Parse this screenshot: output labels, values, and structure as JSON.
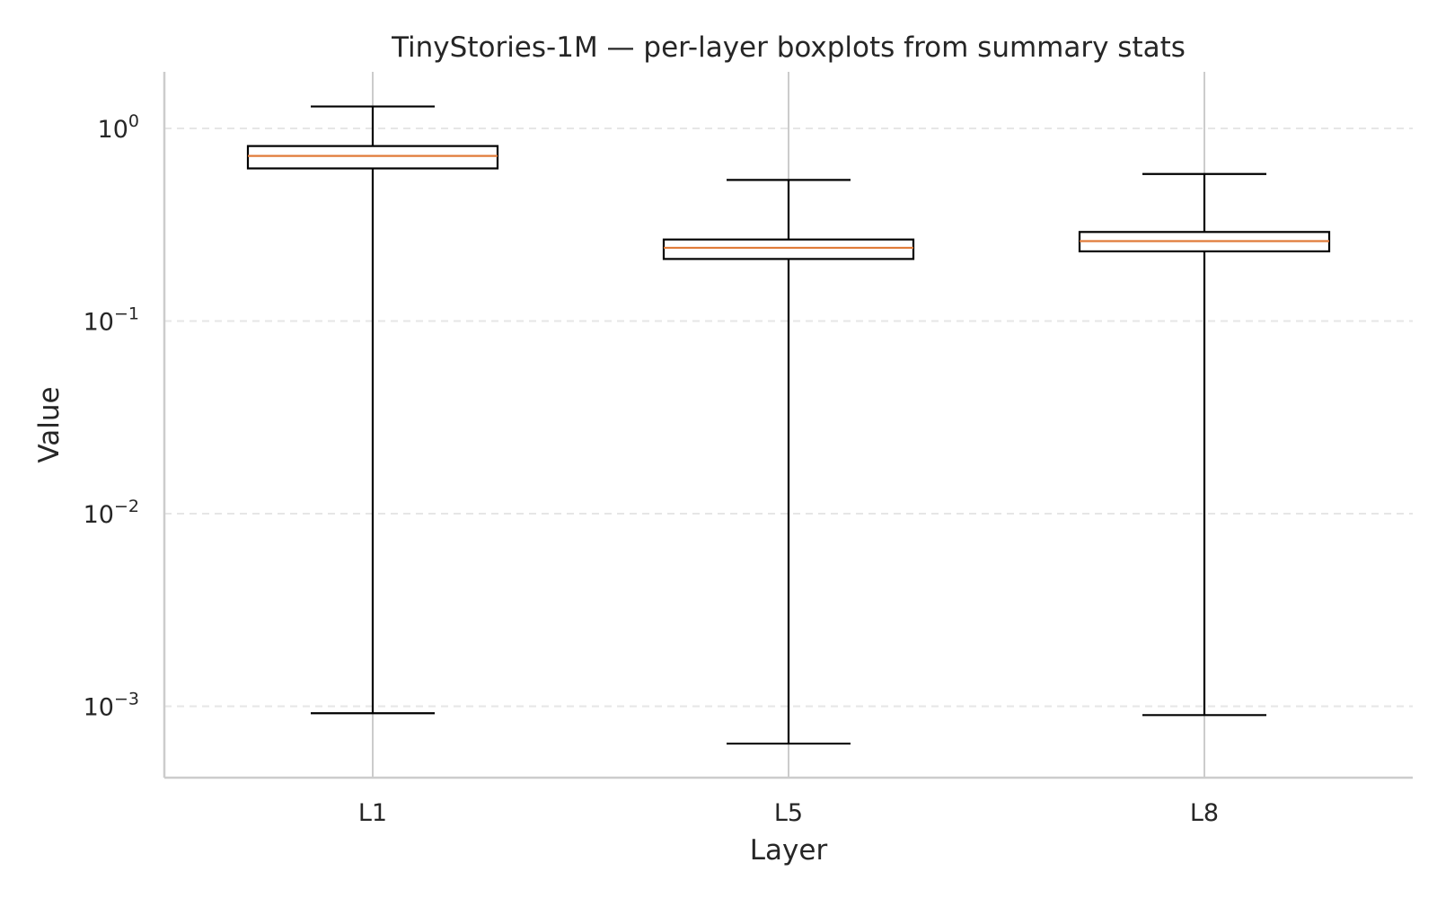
{
  "chart_data": {
    "type": "boxplot",
    "title": "TinyStories-1M — per-layer boxplots from summary stats",
    "xlabel": "Layer",
    "ylabel": "Value",
    "yscale": "log",
    "ylim": [
      0.00045,
      1.9
    ],
    "yticks": [
      {
        "value": 0.001,
        "base": "10",
        "exp": "−3"
      },
      {
        "value": 0.01,
        "base": "10",
        "exp": "−2"
      },
      {
        "value": 0.1,
        "base": "10",
        "exp": "−1"
      },
      {
        "value": 1,
        "base": "10",
        "exp": "0"
      }
    ],
    "grid": {
      "y": "dashed",
      "x": "solid"
    },
    "colors": {
      "box": "#000000",
      "median": "#e07b39",
      "grid": "#e6e6e6",
      "xgrid": "#cccccc",
      "axis": "#cccccc"
    },
    "categories": [
      "L1",
      "L5",
      "L8"
    ],
    "boxes": [
      {
        "label": "L1",
        "whislo": 0.00092,
        "q1": 0.62,
        "med": 0.72,
        "q3": 0.81,
        "whishi": 1.3
      },
      {
        "label": "L5",
        "whislo": 0.00064,
        "q1": 0.21,
        "med": 0.24,
        "q3": 0.265,
        "whishi": 0.54
      },
      {
        "label": "L8",
        "whislo": 0.0009,
        "q1": 0.23,
        "med": 0.26,
        "q3": 0.29,
        "whishi": 0.58
      }
    ]
  }
}
